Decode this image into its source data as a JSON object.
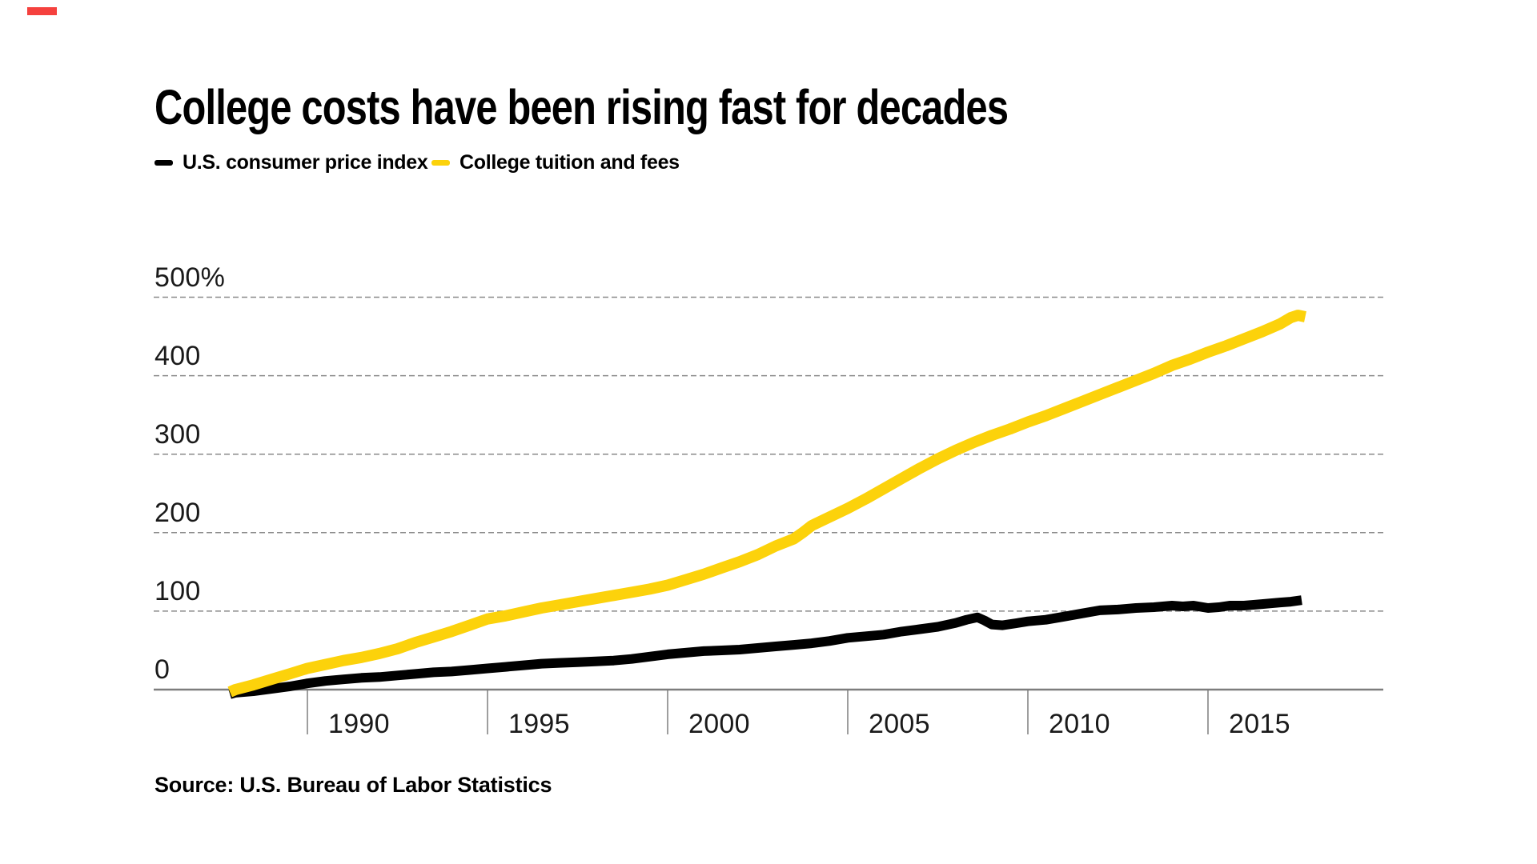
{
  "brand": {
    "accent_mark_color": "#F5413E"
  },
  "title": "College costs have been rising fast for decades",
  "legend": [
    {
      "label": "U.S. consumer price index",
      "color": "#000000"
    },
    {
      "label": "College tuition and fees",
      "color": "#FCD20B"
    }
  ],
  "source": "Source: U.S. Bureau of Labor Statistics",
  "colors": {
    "cpi_line": "#000000",
    "tuition_line": "#FCD20B",
    "gridline": "#8a8a8a",
    "axis": "#7d7d7d",
    "label_text": "#1a1a1a"
  },
  "chart_data": {
    "type": "line",
    "unit": "percent change",
    "title": "College costs have been rising fast for decades",
    "grid": "dashed horizontal gridlines, legend top-left, no vertical gridlines",
    "x_axis": {
      "ticks": [
        1990,
        1995,
        2000,
        2005,
        2010,
        2015
      ],
      "range": [
        1987.85,
        2019.9
      ]
    },
    "y_axis": {
      "tick_labels": [
        "500%",
        "400",
        "300",
        "200",
        "100",
        "0"
      ],
      "tick_values": [
        500,
        400,
        300,
        200,
        100,
        0
      ],
      "range": [
        0,
        500
      ]
    },
    "series": [
      {
        "name": "U.S. consumer price index",
        "color": "#000000",
        "points": [
          [
            1987.85,
            -6
          ],
          [
            1988,
            -4
          ],
          [
            1988.5,
            -2
          ],
          [
            1989,
            1
          ],
          [
            1989.5,
            4
          ],
          [
            1990,
            8
          ],
          [
            1990.5,
            11
          ],
          [
            1991,
            13
          ],
          [
            1991.5,
            15
          ],
          [
            1992,
            16
          ],
          [
            1992.5,
            18
          ],
          [
            1993,
            20
          ],
          [
            1993.5,
            22
          ],
          [
            1994,
            23
          ],
          [
            1994.5,
            25
          ],
          [
            1995,
            27
          ],
          [
            1995.5,
            29
          ],
          [
            1996,
            31
          ],
          [
            1996.5,
            33
          ],
          [
            1997,
            34
          ],
          [
            1997.5,
            35
          ],
          [
            1998,
            36
          ],
          [
            1998.5,
            37
          ],
          [
            1999,
            39
          ],
          [
            1999.5,
            42
          ],
          [
            2000,
            45
          ],
          [
            2000.5,
            47
          ],
          [
            2001,
            49
          ],
          [
            2001.5,
            50
          ],
          [
            2002,
            51
          ],
          [
            2002.5,
            53
          ],
          [
            2003,
            55
          ],
          [
            2003.5,
            57
          ],
          [
            2004,
            59
          ],
          [
            2004.5,
            62
          ],
          [
            2005,
            66
          ],
          [
            2005.5,
            68
          ],
          [
            2006,
            70
          ],
          [
            2006.5,
            74
          ],
          [
            2007,
            77
          ],
          [
            2007.5,
            80
          ],
          [
            2008,
            85
          ],
          [
            2008.3,
            89
          ],
          [
            2008.6,
            92
          ],
          [
            2008.8,
            88
          ],
          [
            2009,
            83
          ],
          [
            2009.3,
            82
          ],
          [
            2009.6,
            84
          ],
          [
            2010,
            87
          ],
          [
            2010.5,
            89
          ],
          [
            2011,
            93
          ],
          [
            2011.5,
            97
          ],
          [
            2012,
            101
          ],
          [
            2012.5,
            102
          ],
          [
            2013,
            104
          ],
          [
            2013.5,
            105
          ],
          [
            2014,
            107
          ],
          [
            2014.3,
            106
          ],
          [
            2014.6,
            107
          ],
          [
            2015,
            104
          ],
          [
            2015.3,
            105
          ],
          [
            2015.6,
            107
          ],
          [
            2016,
            107
          ],
          [
            2016.5,
            109
          ],
          [
            2017,
            111
          ],
          [
            2017.3,
            112
          ],
          [
            2017.6,
            114
          ]
        ]
      },
      {
        "name": "College tuition and fees",
        "color": "#FCD20B",
        "points": [
          [
            1987.85,
            -3
          ],
          [
            1988,
            0
          ],
          [
            1988.5,
            6
          ],
          [
            1989,
            13
          ],
          [
            1989.5,
            20
          ],
          [
            1990,
            27
          ],
          [
            1990.5,
            32
          ],
          [
            1991,
            37
          ],
          [
            1991.5,
            41
          ],
          [
            1992,
            46
          ],
          [
            1992.5,
            52
          ],
          [
            1993,
            60
          ],
          [
            1993.5,
            67
          ],
          [
            1994,
            74
          ],
          [
            1994.5,
            82
          ],
          [
            1995,
            90
          ],
          [
            1995.5,
            94
          ],
          [
            1996,
            99
          ],
          [
            1996.5,
            104
          ],
          [
            1997,
            108
          ],
          [
            1997.5,
            112
          ],
          [
            1998,
            116
          ],
          [
            1998.5,
            120
          ],
          [
            1999,
            124
          ],
          [
            1999.5,
            128
          ],
          [
            2000,
            133
          ],
          [
            2000.5,
            140
          ],
          [
            2001,
            147
          ],
          [
            2001.5,
            155
          ],
          [
            2002,
            163
          ],
          [
            2002.5,
            172
          ],
          [
            2003,
            183
          ],
          [
            2003.5,
            192
          ],
          [
            2003.75,
            200
          ],
          [
            2004,
            209
          ],
          [
            2004.5,
            220
          ],
          [
            2005,
            231
          ],
          [
            2005.5,
            243
          ],
          [
            2006,
            256
          ],
          [
            2006.5,
            269
          ],
          [
            2007,
            282
          ],
          [
            2007.5,
            294
          ],
          [
            2008,
            305
          ],
          [
            2008.5,
            315
          ],
          [
            2009,
            324
          ],
          [
            2009.5,
            332
          ],
          [
            2010,
            341
          ],
          [
            2010.5,
            349
          ],
          [
            2011,
            358
          ],
          [
            2011.5,
            367
          ],
          [
            2012,
            376
          ],
          [
            2012.5,
            385
          ],
          [
            2013,
            394
          ],
          [
            2013.5,
            403
          ],
          [
            2014,
            413
          ],
          [
            2014.5,
            421
          ],
          [
            2015,
            430
          ],
          [
            2015.5,
            438
          ],
          [
            2016,
            447
          ],
          [
            2016.5,
            456
          ],
          [
            2017,
            466
          ],
          [
            2017.3,
            474
          ],
          [
            2017.5,
            477
          ],
          [
            2017.7,
            475
          ]
        ]
      }
    ]
  }
}
